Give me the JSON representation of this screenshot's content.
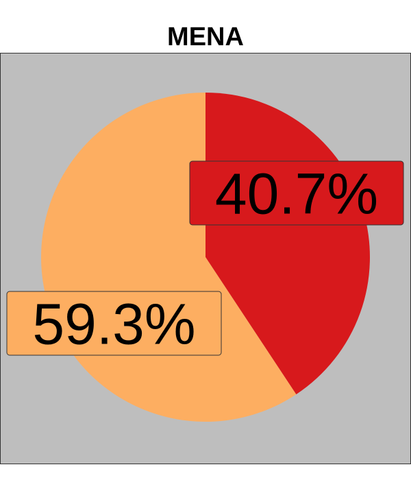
{
  "chart_data": {
    "type": "pie",
    "title": "MENA",
    "slices": [
      {
        "label": "40.7%",
        "value": 40.7,
        "color": "#d7191c"
      },
      {
        "label": "59.3%",
        "value": 59.3,
        "color": "#fdae61"
      }
    ],
    "background": "#bebebe",
    "legend": "none"
  }
}
